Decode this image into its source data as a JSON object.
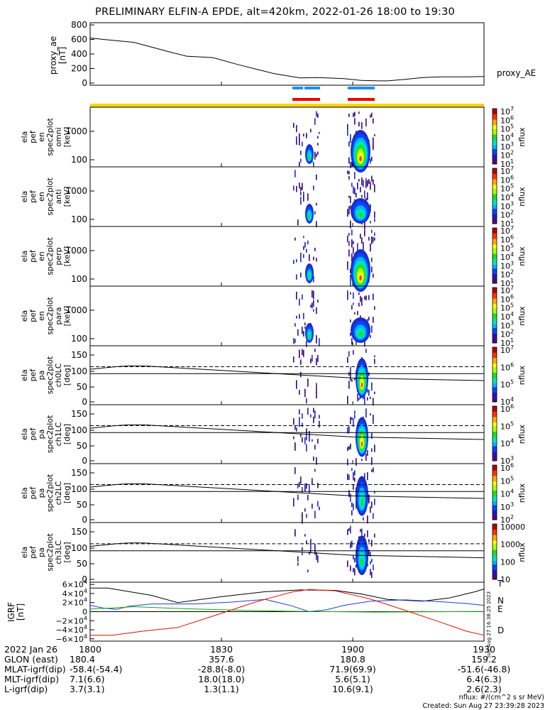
{
  "title": "PRELIMINARY ELFIN-A EPDE, alt=420km, 2022-01-26 18:00 to 19:30",
  "footer": {
    "units": "nflux: #/(cm^2 s sr MeV)",
    "created": "Created: Sun Aug 27 23:39:28 2023"
  },
  "side_stamp": "Sun Aug 27 16:38:25 2023",
  "colors": {
    "science_bar_blue": "#1e90ff",
    "science_bar_red": "#ee0000",
    "sunlight_bar": "#ffd400",
    "N": "#1f3bd8",
    "E": "#11aa11",
    "D": "#dd1100"
  },
  "chart_data": [
    {
      "type": "line",
      "ylabel": "proxy_ae [nT]",
      "series_label": "proxy_AE",
      "ylim": [
        -30,
        830
      ],
      "yticks": [
        "800",
        "600",
        "400",
        "200",
        "0"
      ],
      "x_minutes": [
        0,
        3,
        10,
        18,
        22,
        28,
        34,
        38,
        42,
        48,
        52,
        58,
        62,
        66,
        68,
        72,
        76,
        80,
        86,
        90
      ],
      "values": [
        620,
        600,
        560,
        430,
        370,
        350,
        250,
        190,
        130,
        70,
        75,
        60,
        35,
        30,
        30,
        50,
        75,
        85,
        85,
        90
      ]
    },
    {
      "type": "heatmap",
      "panel": "ela pef en spec2plot omni [keV]",
      "ylabel": [
        "ela",
        "pef",
        "en",
        "spec2plot",
        "omni",
        "[keV]"
      ],
      "yticks": [
        "1000",
        "100"
      ],
      "zticks": [
        "10^7",
        "10^6",
        "10^5",
        "10^4",
        "10^3",
        "10^2",
        "10^1"
      ],
      "zlabel": "nflux"
    },
    {
      "type": "heatmap",
      "panel": "ela pef en spec2plot anti [keV]",
      "ylabel": [
        "ela",
        "pef",
        "en",
        "spec2plot",
        "anti",
        "[keV]"
      ],
      "yticks": [
        "1000",
        "100"
      ],
      "zticks": [
        "10^7",
        "10^6",
        "10^5",
        "10^4",
        "10^3",
        "10^2",
        "10^1"
      ],
      "zlabel": "nflux"
    },
    {
      "type": "heatmap",
      "panel": "ela pef en spec2plot perp [keV]",
      "ylabel": [
        "ela",
        "pef",
        "en",
        "spec2plot",
        "perp",
        "[keV]"
      ],
      "yticks": [
        "1000",
        "100"
      ],
      "zticks": [
        "10^7",
        "10^6",
        "10^5",
        "10^4",
        "10^3",
        "10^2",
        "10^1"
      ],
      "zlabel": "nflux"
    },
    {
      "type": "heatmap",
      "panel": "ela pef en spec2plot para [keV]",
      "ylabel": [
        "ela",
        "pef",
        "en",
        "spec2plot",
        "para",
        "[keV]"
      ],
      "yticks": [
        "1000",
        "100"
      ],
      "zticks": [
        "10^7",
        "10^6",
        "10^5",
        "10^4",
        "10^3",
        "10^2",
        "10^1"
      ],
      "zlabel": "nflux"
    },
    {
      "type": "heatmap",
      "panel": "ela pef pa spec2plot ch0LC [deg]",
      "ylabel": [
        "ela",
        "pef",
        "pa",
        "spec2plot",
        "ch0LC",
        "[deg]"
      ],
      "yticks": [
        "150",
        "100",
        "50",
        "0"
      ],
      "zticks": [
        "10^7",
        "10^6",
        "10^5",
        "10^4"
      ],
      "zlabel": "nflux"
    },
    {
      "type": "heatmap",
      "panel": "ela pef pa spec2plot ch1LC [deg]",
      "ylabel": [
        "ela",
        "pef",
        "pa",
        "spec2plot",
        "ch1LC",
        "[deg]"
      ],
      "yticks": [
        "150",
        "100",
        "50",
        "0"
      ],
      "zticks": [
        "10^6",
        "10^5",
        "10^4",
        "10^3"
      ],
      "zlabel": "nflux"
    },
    {
      "type": "heatmap",
      "panel": "ela pef pa spec2plot ch2LC [deg]",
      "ylabel": [
        "ela",
        "pef",
        "pa",
        "spec2plot",
        "ch2LC",
        "[deg]"
      ],
      "yticks": [
        "150",
        "100",
        "50",
        "0"
      ],
      "zticks": [
        "10^6",
        "10^5",
        "10^4",
        "10^3",
        "10^2"
      ],
      "zlabel": "nflux"
    },
    {
      "type": "heatmap",
      "panel": "ela pef pa spec2plot ch3LC [deg]",
      "ylabel": [
        "ela",
        "pef",
        "pa",
        "spec2plot",
        "ch3LC",
        "[deg]"
      ],
      "yticks": [
        "150",
        "100",
        "50",
        "0"
      ],
      "zticks": [
        "10000",
        "1000",
        "100",
        "10"
      ],
      "zlabel": "nflux"
    },
    {
      "type": "line",
      "ylabel": "IGRF [nT]",
      "ylim": [
        -65000,
        65000
      ],
      "yticks": [
        "6×10^4",
        "4×10^4",
        "2×10^4",
        "0",
        "−2×10^4",
        "−4×10^4",
        "−6×10^4"
      ],
      "series": [
        {
          "name": "T",
          "values_x_minutes": [
            0,
            4,
            14,
            20,
            30,
            40,
            48,
            56,
            62,
            68,
            76,
            82,
            88,
            90
          ],
          "values": [
            52000,
            52000,
            36000,
            20000,
            33000,
            44000,
            48000,
            47000,
            39000,
            27000,
            23000,
            30000,
            44000,
            50000
          ]
        },
        {
          "name": "N",
          "values_x_minutes": [
            0,
            3,
            6,
            9,
            14,
            24,
            32,
            40,
            46,
            50,
            54,
            58,
            64,
            72,
            80,
            86,
            90
          ],
          "values": [
            14000,
            8000,
            5000,
            12000,
            17000,
            17000,
            21000,
            27000,
            13000,
            0,
            4000,
            14000,
            23000,
            26000,
            22000,
            18000,
            14000
          ]
        },
        {
          "name": "E",
          "values_x_minutes": [
            0,
            5,
            10,
            20,
            35,
            45,
            55,
            65,
            75,
            90
          ],
          "values": [
            6000,
            8000,
            11000,
            7000,
            3000,
            1000,
            0,
            -1000,
            -500,
            500
          ]
        },
        {
          "name": "D",
          "values_x_minutes": [
            0,
            5,
            12,
            20,
            28,
            38,
            46,
            50,
            56,
            64,
            72,
            80,
            86,
            90
          ],
          "values": [
            -52000,
            -52000,
            -43000,
            -35000,
            -10000,
            22000,
            43000,
            49000,
            46000,
            28000,
            3000,
            -23000,
            -43000,
            -52000
          ]
        }
      ]
    }
  ],
  "x_axis": {
    "date_label": "2022 Jan 26",
    "ticks": [
      "1800",
      "1830",
      "1900",
      "1930"
    ],
    "rows": [
      {
        "label": "GLON (east)",
        "values": [
          "180.4",
          "357.6",
          "180.8",
          "159.2"
        ]
      },
      {
        "label": "MLAT-igrf(dip)",
        "values": [
          "-58.4(-54.4)",
          "-28.8(-8.0)",
          "71.9(69.9)",
          "-51.6(-46.8)"
        ]
      },
      {
        "label": "MLT-igrf(dip)",
        "values": [
          "7.1(6.6)",
          "18.0(18.0)",
          "5.6(5.1)",
          "6.4(6.3)"
        ]
      },
      {
        "label": "L-igrf(dip)",
        "values": [
          "3.7(3.1)",
          "1.3(1.1)",
          "10.6(9.1)",
          "2.6(2.3)"
        ]
      }
    ]
  }
}
